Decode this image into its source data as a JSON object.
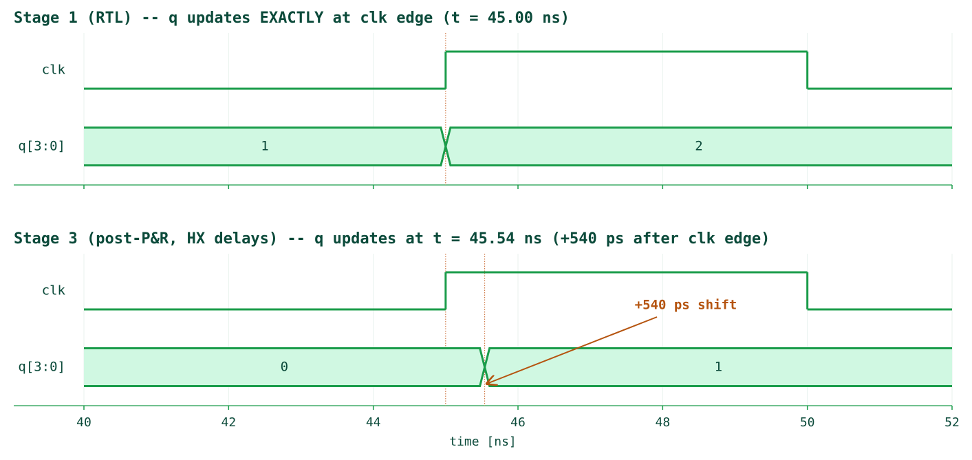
{
  "chart_data": [
    {
      "type": "timing",
      "title": "Stage 1 (RTL) -- q updates EXACTLY at clk edge (t = 45.00 ns)",
      "xlim": [
        39.03,
        52
      ],
      "xticks": [
        40,
        42,
        44,
        46,
        48,
        50,
        52
      ],
      "grid": true,
      "color": "#1a9c4a",
      "fill": "#d0f8e2",
      "markers": [
        45
      ],
      "marker_color": "#c8642a",
      "signals": [
        {
          "name": "clk",
          "kind": "bit",
          "x": [
            40,
            45,
            50
          ],
          "values": [
            0,
            1,
            0
          ]
        },
        {
          "name": "q[3:0]",
          "kind": "bus",
          "x": [
            40,
            45
          ],
          "values": [
            1,
            2
          ]
        }
      ]
    },
    {
      "type": "timing",
      "title": "Stage 3 (post-P&R, HX delays) -- q updates at t = 45.54 ns (+540 ps after clk edge)",
      "xlim": [
        39.03,
        52
      ],
      "xticks": [
        40,
        42,
        44,
        46,
        48,
        50,
        52
      ],
      "grid": true,
      "color": "#1a9c4a",
      "fill": "#d0f8e2",
      "xlabel": "time [ns]",
      "markers": [
        45,
        45.54
      ],
      "marker_color": "#c8642a",
      "signals": [
        {
          "name": "clk",
          "kind": "bit",
          "x": [
            40,
            45,
            50
          ],
          "values": [
            0,
            1,
            0
          ]
        },
        {
          "name": "q[3:0]",
          "kind": "bus",
          "x": [
            40,
            45.54
          ],
          "values": [
            0,
            1
          ]
        }
      ],
      "annotation": {
        "text": "+540 ps shift",
        "x": 45.54,
        "color": "#b5540f"
      }
    }
  ]
}
